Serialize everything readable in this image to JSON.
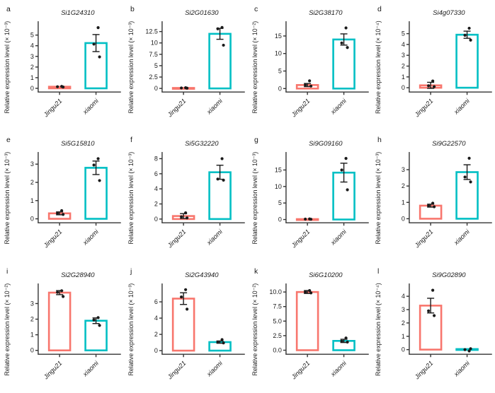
{
  "figure": {
    "categories": [
      "Jingu21",
      "xiaomi"
    ],
    "colors": {
      "Jingu21": "#F8766D",
      "xiaomi": "#00BFC4",
      "points": "#1a1a1a",
      "axis": "#333333"
    }
  },
  "chart_data": [
    {
      "type": "bar",
      "panel": "a",
      "title": "Si1G24310",
      "ylabel": "Relative expression level (× 10⁻³)",
      "categories": [
        "Jingu21",
        "xiaomi"
      ],
      "yticks": [
        "0",
        "1",
        "2",
        "3",
        "4",
        "5"
      ],
      "ylim": [
        -0.35,
        6.1
      ],
      "series": [
        {
          "name": "Jingu21",
          "bar": 0.15,
          "se": null,
          "points": [
            0.18,
            0.15,
            0.12
          ]
        },
        {
          "name": "xiaomi",
          "bar": 4.25,
          "se": 0.8,
          "points": [
            5.7,
            4.15,
            2.95
          ]
        }
      ]
    },
    {
      "type": "bar",
      "panel": "b",
      "title": "Si2G01630",
      "ylabel": "Relative expression level (× 10⁻³)",
      "categories": [
        "Jingu21",
        "xiaomi"
      ],
      "yticks": [
        "0",
        "2.5",
        "5",
        "7.5",
        "10",
        "12.5"
      ],
      "ylim": [
        -0.8,
        14.3
      ],
      "series": [
        {
          "name": "Jingu21",
          "bar": 0.1,
          "se": null,
          "points": [
            0.15,
            0.1,
            0.05
          ]
        },
        {
          "name": "xiaomi",
          "bar": 12.0,
          "se": 1.2,
          "points": [
            13.4,
            13.1,
            9.5
          ]
        }
      ]
    },
    {
      "type": "bar",
      "panel": "c",
      "title": "Si2G38170",
      "ylabel": "Relative expression level (× 10⁻²)",
      "categories": [
        "Jingu21",
        "xiaomi"
      ],
      "yticks": [
        "0",
        "5",
        "10",
        "15"
      ],
      "ylim": [
        -1.0,
        18.6
      ],
      "series": [
        {
          "name": "Jingu21",
          "bar": 1.0,
          "se": 0.45,
          "points": [
            2.2,
            1.0,
            0.7
          ]
        },
        {
          "name": "xiaomi",
          "bar": 14.0,
          "se": 1.6,
          "points": [
            17.3,
            13.0,
            11.7
          ]
        }
      ]
    },
    {
      "type": "bar",
      "panel": "d",
      "title": "Si4g07330",
      "ylabel": "Relative expression level (× 10⁻⁴)",
      "categories": [
        "Jingu21",
        "xiaomi"
      ],
      "yticks": [
        "0",
        "1",
        "2",
        "3",
        "4",
        "5"
      ],
      "ylim": [
        -0.4,
        5.95
      ],
      "series": [
        {
          "name": "Jingu21",
          "bar": 0.22,
          "se": 0.28,
          "points": [
            0.62,
            0.18,
            0.1
          ]
        },
        {
          "name": "xiaomi",
          "bar": 4.9,
          "se": 0.33,
          "points": [
            5.5,
            4.85,
            4.4
          ]
        }
      ]
    },
    {
      "type": "bar",
      "panel": "e",
      "title": "Si5G15810",
      "ylabel": "Relative expression level (× 10⁻³)",
      "categories": [
        "Jingu21",
        "xiaomi"
      ],
      "yticks": [
        "0",
        "1",
        "2",
        "3"
      ],
      "ylim": [
        -0.22,
        3.55
      ],
      "series": [
        {
          "name": "Jingu21",
          "bar": 0.3,
          "se": 0.08,
          "points": [
            0.45,
            0.3,
            0.24
          ]
        },
        {
          "name": "xiaomi",
          "bar": 2.8,
          "se": 0.37,
          "points": [
            3.3,
            2.95,
            2.1
          ]
        }
      ]
    },
    {
      "type": "bar",
      "panel": "f",
      "title": "Si5G32220",
      "ylabel": "Relative expression level (× 10⁻³)",
      "categories": [
        "Jingu21",
        "xiaomi"
      ],
      "yticks": [
        "0",
        "2",
        "4",
        "6",
        "8"
      ],
      "ylim": [
        -0.5,
        8.6
      ],
      "series": [
        {
          "name": "Jingu21",
          "bar": 0.4,
          "se": 0.32,
          "points": [
            0.82,
            0.3,
            0.15
          ]
        },
        {
          "name": "xiaomi",
          "bar": 6.2,
          "se": 0.93,
          "points": [
            8.0,
            5.3,
            5.15
          ]
        }
      ]
    },
    {
      "type": "bar",
      "panel": "g",
      "title": "Si9G09160",
      "ylabel": "Relative expression level (× 10⁻³)",
      "categories": [
        "Jingu21",
        "xiaomi"
      ],
      "yticks": [
        "0",
        "5",
        "10",
        "15"
      ],
      "ylim": [
        -1.0,
        19.8
      ],
      "series": [
        {
          "name": "Jingu21",
          "bar": 0.12,
          "se": null,
          "points": [
            0.18,
            0.12,
            0.08
          ]
        },
        {
          "name": "xiaomi",
          "bar": 14.2,
          "se": 2.85,
          "points": [
            18.5,
            15.0,
            9.0
          ]
        }
      ]
    },
    {
      "type": "bar",
      "panel": "h",
      "title": "Si9G22570",
      "ylabel": "Relative expression level (× 10⁻³)",
      "categories": [
        "Jingu21",
        "xiaomi"
      ],
      "yticks": [
        "0",
        "1",
        "2",
        "3"
      ],
      "ylim": [
        -0.25,
        3.95
      ],
      "series": [
        {
          "name": "Jingu21",
          "bar": 0.8,
          "se": 0.09,
          "points": [
            0.95,
            0.8,
            0.73
          ]
        },
        {
          "name": "xiaomi",
          "bar": 2.85,
          "se": 0.45,
          "points": [
            3.7,
            2.55,
            2.25
          ]
        }
      ]
    },
    {
      "type": "bar",
      "panel": "i",
      "title": "Si2G28940",
      "ylabel": "Relative expression level (× 10⁻²)",
      "categories": [
        "Jingu21",
        "xiaomi"
      ],
      "yticks": [
        "0",
        "1",
        "2",
        "3"
      ],
      "ylim": [
        -0.25,
        4.15
      ],
      "series": [
        {
          "name": "Jingu21",
          "bar": 3.7,
          "se": 0.13,
          "points": [
            3.82,
            3.72,
            3.45
          ]
        },
        {
          "name": "xiaomi",
          "bar": 1.9,
          "se": 0.18,
          "points": [
            2.1,
            1.95,
            1.6
          ]
        }
      ]
    },
    {
      "type": "bar",
      "panel": "j",
      "title": "Si2G43940",
      "ylabel": "Relative expression level (× 10⁻³)",
      "categories": [
        "Jingu21",
        "xiaomi"
      ],
      "yticks": [
        "0",
        "2",
        "4",
        "6"
      ],
      "ylim": [
        -0.45,
        8.0
      ],
      "series": [
        {
          "name": "Jingu21",
          "bar": 6.4,
          "se": 0.72,
          "points": [
            7.5,
            6.6,
            5.1
          ]
        },
        {
          "name": "xiaomi",
          "bar": 1.05,
          "se": 0.14,
          "points": [
            1.35,
            1.05,
            0.95
          ]
        }
      ]
    },
    {
      "type": "bar",
      "panel": "k",
      "title": "Si6G10200",
      "ylabel": "Relative expression level (× 10⁻²)",
      "categories": [
        "Jingu21",
        "xiaomi"
      ],
      "yticks": [
        "0.0",
        "2.5",
        "5.0",
        "7.5",
        "10.0"
      ],
      "ylim": [
        -0.7,
        11.1
      ],
      "series": [
        {
          "name": "Jingu21",
          "bar": 10.0,
          "se": 0.25,
          "points": [
            10.25,
            10.0,
            9.85
          ]
        },
        {
          "name": "xiaomi",
          "bar": 1.6,
          "se": 0.28,
          "points": [
            2.1,
            1.55,
            1.4
          ]
        }
      ]
    },
    {
      "type": "bar",
      "panel": "l",
      "title": "Si9G02890",
      "ylabel": "Relative expression level (× 10⁻⁴)",
      "categories": [
        "Jingu21",
        "xiaomi"
      ],
      "yticks": [
        "0",
        "1",
        "2",
        "3",
        "4"
      ],
      "ylim": [
        -0.35,
        4.8
      ],
      "series": [
        {
          "name": "Jingu21",
          "bar": 3.3,
          "se": 0.55,
          "points": [
            4.45,
            2.9,
            2.55
          ]
        },
        {
          "name": "xiaomi",
          "bar": 0.04,
          "se": null,
          "points": [
            -0.1,
            0.0,
            0.07
          ]
        }
      ]
    }
  ]
}
